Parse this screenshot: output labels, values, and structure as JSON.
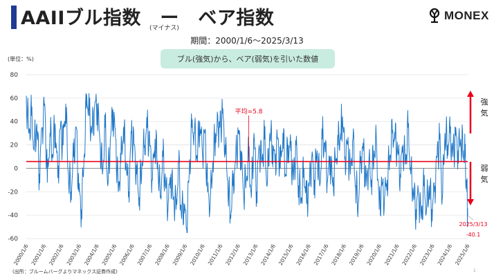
{
  "title": "AAIIブル指数　ー　ベア指数",
  "title_sub": "(マイナス)",
  "period": "期間：2000/1/6～2025/3/13",
  "pill_text": "ブル(強気)から、ベア(弱気)を引いた数値",
  "unit": "(単位：%)",
  "source": "(出所：ブルームバーグよりマネックス証券作成)",
  "page_number": "1",
  "logo_text": "MONEX",
  "colors": {
    "line": "#1f77c8",
    "mean": "#e8001c",
    "arrow": "#e8001c",
    "title_bar": "#1f3a93",
    "pill": "#c9ece0"
  },
  "chart_data": {
    "type": "line",
    "title": "",
    "xlabel": "",
    "ylabel": "",
    "ylim": [
      -60,
      80
    ],
    "yticks": [
      80,
      60,
      40,
      20,
      0,
      -20,
      -40,
      -60
    ],
    "xtick_labels": [
      "2000/1/6",
      "2001/1/6",
      "2002/1/6",
      "2003/1/6",
      "2004/1/6",
      "2005/1/6",
      "2006/1/6",
      "2007/1/6",
      "2008/1/6",
      "2009/1/6",
      "2010/1/6",
      "2011/1/6",
      "2012/1/6",
      "2013/1/6",
      "2014/1/6",
      "2015/1/6",
      "2016/1/6",
      "2017/1/6",
      "2018/1/6",
      "2019/1/6",
      "2020/1/6",
      "2021/1/6",
      "2022/1/6",
      "2023/1/6",
      "2024/1/6",
      "2025/1/6"
    ],
    "mean": {
      "value": 5.8,
      "label": "平均=5.8"
    },
    "bull_label": [
      "強",
      "気"
    ],
    "bear_label": [
      "弱",
      "気"
    ],
    "last_point": {
      "date": "2025/3/13",
      "value": -40.1,
      "date_label": "2025/3/13",
      "value_label": "-40.1"
    },
    "series": [
      {
        "values": [
          [
            2000.0,
            62
          ],
          [
            2000.15,
            30
          ],
          [
            2000.3,
            45
          ],
          [
            2000.45,
            15
          ],
          [
            2000.6,
            38
          ],
          [
            2000.75,
            -5
          ],
          [
            2000.9,
            35
          ],
          [
            2001.05,
            55
          ],
          [
            2001.2,
            -12
          ],
          [
            2001.35,
            30
          ],
          [
            2001.5,
            12
          ],
          [
            2001.65,
            38
          ],
          [
            2001.8,
            -8
          ],
          [
            2001.95,
            35
          ],
          [
            2002.1,
            20
          ],
          [
            2002.25,
            55
          ],
          [
            2002.4,
            -5
          ],
          [
            2002.55,
            -20
          ],
          [
            2002.7,
            10
          ],
          [
            2002.85,
            35
          ],
          [
            2003.0,
            -20
          ],
          [
            2003.15,
            -35
          ],
          [
            2003.3,
            10
          ],
          [
            2003.45,
            63
          ],
          [
            2003.6,
            45
          ],
          [
            2003.75,
            30
          ],
          [
            2003.9,
            52
          ],
          [
            2004.05,
            55
          ],
          [
            2004.2,
            25
          ],
          [
            2004.35,
            -5
          ],
          [
            2004.5,
            35
          ],
          [
            2004.65,
            -15
          ],
          [
            2004.8,
            25
          ],
          [
            2004.95,
            50
          ],
          [
            2005.1,
            25
          ],
          [
            2005.25,
            -20
          ],
          [
            2005.4,
            5
          ],
          [
            2005.55,
            35
          ],
          [
            2005.7,
            5
          ],
          [
            2005.85,
            -20
          ],
          [
            2006.0,
            30
          ],
          [
            2006.15,
            20
          ],
          [
            2006.3,
            -5
          ],
          [
            2006.45,
            -25
          ],
          [
            2006.6,
            5
          ],
          [
            2006.75,
            20
          ],
          [
            2006.9,
            35
          ],
          [
            2007.05,
            20
          ],
          [
            2007.2,
            -10
          ],
          [
            2007.35,
            25
          ],
          [
            2007.5,
            5
          ],
          [
            2007.65,
            -25
          ],
          [
            2007.8,
            10
          ],
          [
            2007.95,
            -15
          ],
          [
            2008.1,
            -30
          ],
          [
            2008.25,
            -5
          ],
          [
            2008.4,
            -25
          ],
          [
            2008.55,
            -35
          ],
          [
            2008.7,
            5
          ],
          [
            2008.85,
            -40
          ],
          [
            2009.0,
            -30
          ],
          [
            2009.15,
            -51
          ],
          [
            2009.3,
            -5
          ],
          [
            2009.45,
            35
          ],
          [
            2009.6,
            30
          ],
          [
            2009.75,
            10
          ],
          [
            2009.9,
            40
          ],
          [
            2010.05,
            15
          ],
          [
            2010.2,
            30
          ],
          [
            2010.35,
            -20
          ],
          [
            2010.5,
            -30
          ],
          [
            2010.65,
            5
          ],
          [
            2010.8,
            30
          ],
          [
            2010.95,
            35
          ],
          [
            2011.05,
            35
          ],
          [
            2011.2,
            47
          ],
          [
            2011.35,
            20
          ],
          [
            2011.5,
            -10
          ],
          [
            2011.65,
            -40
          ],
          [
            2011.8,
            -15
          ],
          [
            2011.95,
            5
          ],
          [
            2012.1,
            30
          ],
          [
            2012.25,
            15
          ],
          [
            2012.4,
            -20
          ],
          [
            2012.55,
            -10
          ],
          [
            2012.7,
            10
          ],
          [
            2012.85,
            -25
          ],
          [
            2013.0,
            30
          ],
          [
            2013.15,
            -20
          ],
          [
            2013.3,
            20
          ],
          [
            2013.45,
            5
          ],
          [
            2013.6,
            25
          ],
          [
            2013.75,
            -15
          ],
          [
            2013.9,
            30
          ],
          [
            2014.05,
            20
          ],
          [
            2014.2,
            5
          ],
          [
            2014.35,
            25
          ],
          [
            2014.5,
            0
          ],
          [
            2014.65,
            30
          ],
          [
            2014.8,
            -5
          ],
          [
            2014.95,
            20
          ],
          [
            2015.1,
            15
          ],
          [
            2015.25,
            -10
          ],
          [
            2015.4,
            20
          ],
          [
            2015.55,
            -15
          ],
          [
            2015.7,
            -25
          ],
          [
            2015.85,
            0
          ],
          [
            2016.0,
            -30
          ],
          [
            2016.15,
            -15
          ],
          [
            2016.3,
            10
          ],
          [
            2016.45,
            -10
          ],
          [
            2016.6,
            15
          ],
          [
            2016.75,
            -15
          ],
          [
            2016.9,
            25
          ],
          [
            2017.05,
            20
          ],
          [
            2017.2,
            -10
          ],
          [
            2017.35,
            10
          ],
          [
            2017.5,
            -15
          ],
          [
            2017.65,
            5
          ],
          [
            2017.8,
            20
          ],
          [
            2017.95,
            30
          ],
          [
            2018.05,
            44
          ],
          [
            2018.2,
            10
          ],
          [
            2018.35,
            20
          ],
          [
            2018.5,
            -5
          ],
          [
            2018.65,
            25
          ],
          [
            2018.8,
            -15
          ],
          [
            2018.95,
            -30
          ],
          [
            2019.1,
            10
          ],
          [
            2019.25,
            15
          ],
          [
            2019.4,
            -15
          ],
          [
            2019.55,
            5
          ],
          [
            2019.7,
            -10
          ],
          [
            2019.85,
            15
          ],
          [
            2020.0,
            20
          ],
          [
            2020.15,
            -35
          ],
          [
            2020.3,
            -15
          ],
          [
            2020.45,
            -25
          ],
          [
            2020.6,
            -10
          ],
          [
            2020.75,
            10
          ],
          [
            2020.9,
            30
          ],
          [
            2021.05,
            25
          ],
          [
            2021.2,
            15
          ],
          [
            2021.35,
            -5
          ],
          [
            2021.5,
            20
          ],
          [
            2021.65,
            5
          ],
          [
            2021.8,
            35
          ],
          [
            2021.95,
            -5
          ],
          [
            2022.1,
            -20
          ],
          [
            2022.25,
            -35
          ],
          [
            2022.4,
            -20
          ],
          [
            2022.55,
            -43
          ],
          [
            2022.7,
            -15
          ],
          [
            2022.85,
            -35
          ],
          [
            2023.0,
            -15
          ],
          [
            2023.15,
            -35
          ],
          [
            2023.3,
            -20
          ],
          [
            2023.45,
            10
          ],
          [
            2023.6,
            25
          ],
          [
            2023.75,
            -25
          ],
          [
            2023.9,
            30
          ],
          [
            2024.05,
            20
          ],
          [
            2024.2,
            30
          ],
          [
            2024.35,
            10
          ],
          [
            2024.5,
            28
          ],
          [
            2024.65,
            15
          ],
          [
            2024.8,
            25
          ],
          [
            2024.95,
            15
          ],
          [
            2025.05,
            10
          ],
          [
            2025.15,
            -20
          ],
          [
            2025.2,
            -40.1
          ]
        ]
      }
    ]
  }
}
